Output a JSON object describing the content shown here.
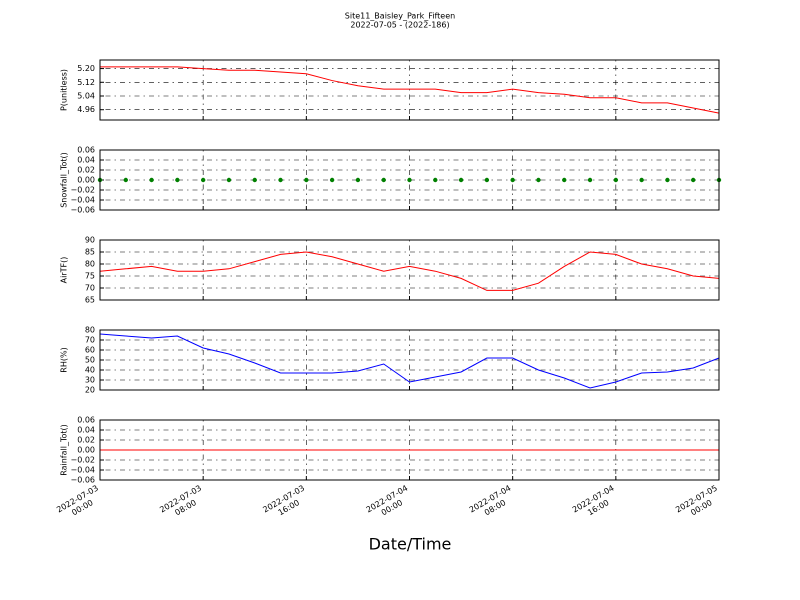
{
  "header": {
    "title": "Site11_Baisley_Park_Fifteen",
    "subtitle": "2022-07-05 - (2022-186)"
  },
  "x_axis": {
    "label": "Date/Time",
    "xlim": [
      "2022-07-03 00:00",
      "2022-07-05 00:00"
    ],
    "xticks": [
      {
        "value": "2022-07-03 00:00",
        "label": [
          "2022-07-03",
          "00:00"
        ]
      },
      {
        "value": "2022-07-03 08:00",
        "label": [
          "2022-07-03",
          "08:00"
        ]
      },
      {
        "value": "2022-07-03 16:00",
        "label": [
          "2022-07-03",
          "16:00"
        ]
      },
      {
        "value": "2022-07-04 00:00",
        "label": [
          "2022-07-04",
          "00:00"
        ]
      },
      {
        "value": "2022-07-04 08:00",
        "label": [
          "2022-07-04",
          "08:00"
        ]
      },
      {
        "value": "2022-07-04 16:00",
        "label": [
          "2022-07-04",
          "16:00"
        ]
      },
      {
        "value": "2022-07-05 00:00",
        "label": [
          "2022-07-05",
          "00:00"
        ]
      }
    ],
    "x": [
      "2022-07-03 00:00",
      "2022-07-03 02:00",
      "2022-07-03 04:00",
      "2022-07-03 06:00",
      "2022-07-03 08:00",
      "2022-07-03 10:00",
      "2022-07-03 12:00",
      "2022-07-03 14:00",
      "2022-07-03 16:00",
      "2022-07-03 18:00",
      "2022-07-03 20:00",
      "2022-07-03 22:00",
      "2022-07-04 00:00",
      "2022-07-04 02:00",
      "2022-07-04 04:00",
      "2022-07-04 06:00",
      "2022-07-04 08:00",
      "2022-07-04 10:00",
      "2022-07-04 12:00",
      "2022-07-04 14:00",
      "2022-07-04 16:00",
      "2022-07-04 18:00",
      "2022-07-04 20:00",
      "2022-07-04 22:00",
      "2022-07-05 00:00"
    ]
  },
  "chart_data": [
    {
      "type": "line",
      "ylabel": "P(unitless)",
      "ylim": [
        4.9,
        5.25
      ],
      "grid": true,
      "yticks": [
        4.96,
        5.04,
        5.12,
        {
          "value": 5.2,
          "label": "5.20"
        }
      ],
      "series": [
        {
          "color": "#ff0000",
          "values": [
            5.21,
            5.21,
            5.21,
            5.21,
            5.2,
            5.19,
            5.19,
            5.18,
            5.17,
            5.13,
            5.1,
            5.08,
            5.08,
            5.08,
            5.06,
            5.06,
            5.08,
            5.06,
            5.05,
            5.03,
            5.03,
            5.0,
            5.0,
            4.97,
            4.94
          ]
        }
      ]
    },
    {
      "type": "scatter",
      "ylabel": "Snowfall_Tot()",
      "ylim": [
        -0.06,
        0.06
      ],
      "grid": true,
      "yticks": [
        {
          "value": -0.06,
          "label": "−0.06"
        },
        {
          "value": -0.04,
          "label": "−0.04"
        },
        {
          "value": -0.02,
          "label": "−0.02"
        },
        {
          "value": 0,
          "label": "0.00"
        },
        0.02,
        0.04,
        0.06
      ],
      "series": [
        {
          "color": "#008000",
          "values": [
            0,
            0,
            0,
            0,
            0,
            0,
            0,
            0,
            0,
            0,
            0,
            0,
            0,
            0,
            0,
            0,
            0,
            0,
            0,
            0,
            0,
            0,
            0,
            0,
            0
          ]
        }
      ]
    },
    {
      "type": "line",
      "ylabel": "AirTF()",
      "ylim": [
        65,
        90
      ],
      "grid": true,
      "yticks": [
        65,
        70,
        75,
        80,
        85,
        90
      ],
      "series": [
        {
          "color": "#ff0000",
          "values": [
            77,
            78,
            79,
            77,
            77,
            78,
            81,
            84,
            85,
            83,
            80,
            77,
            79,
            77,
            74,
            69,
            69,
            72,
            79,
            85,
            84,
            80,
            78,
            75,
            74
          ]
        }
      ]
    },
    {
      "type": "line",
      "ylabel": "RH(%)",
      "ylim": [
        20,
        80
      ],
      "grid": true,
      "yticks": [
        20,
        30,
        40,
        50,
        60,
        70,
        80
      ],
      "series": [
        {
          "color": "#0000ff",
          "values": [
            76,
            74,
            72,
            74,
            62,
            56,
            47,
            37,
            37,
            37,
            39,
            46,
            28,
            33,
            38,
            52,
            52,
            40,
            32,
            22,
            28,
            37,
            38,
            42,
            52
          ]
        }
      ]
    },
    {
      "type": "line",
      "ylabel": "Rainfall_Tot()",
      "ylim": [
        -0.06,
        0.06
      ],
      "grid": true,
      "yticks": [
        {
          "value": -0.06,
          "label": "−0.06"
        },
        {
          "value": -0.04,
          "label": "−0.04"
        },
        {
          "value": -0.02,
          "label": "−0.02"
        },
        {
          "value": 0,
          "label": "0.00"
        },
        0.02,
        0.04,
        0.06
      ],
      "series": [
        {
          "color": "#ff0000",
          "values": [
            0,
            0,
            0,
            0,
            0,
            0,
            0,
            0,
            0,
            0,
            0,
            0,
            0,
            0,
            0,
            0,
            0,
            0,
            0,
            0,
            0,
            0,
            0,
            0,
            0
          ]
        }
      ]
    }
  ]
}
